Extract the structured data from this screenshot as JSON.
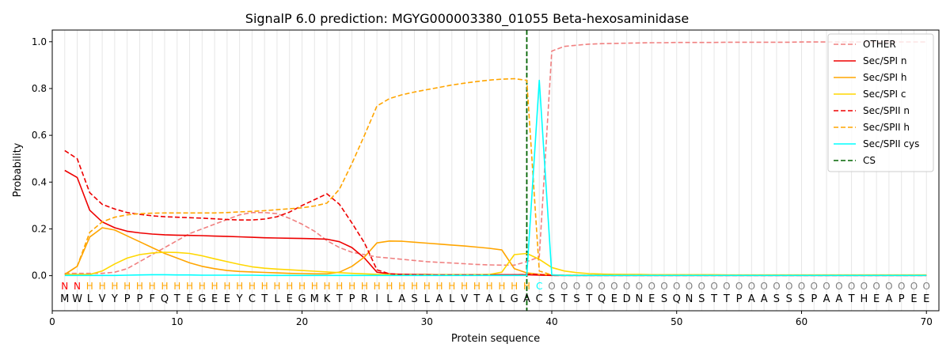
{
  "chart_data": {
    "type": "line",
    "title": "SignalP 6.0 prediction: MGYG000003380_01055 Beta-hexosaminidase",
    "xlabel": "Protein sequence",
    "ylabel": "Probability",
    "xlim": [
      0,
      71
    ],
    "ylim": [
      -0.15,
      1.05
    ],
    "xticks": [
      0,
      10,
      20,
      30,
      40,
      50,
      60,
      70
    ],
    "yticks": [
      0.0,
      0.2,
      0.4,
      0.6,
      0.8,
      1.0
    ],
    "grid": "vertical lines at each residue",
    "legend_position": "top-right",
    "cleavage_site": 38,
    "sequence": [
      "M",
      "W",
      "L",
      "V",
      "Y",
      "P",
      "P",
      "F",
      "Q",
      "T",
      "E",
      "G",
      "E",
      "E",
      "Y",
      "C",
      "T",
      "L",
      "E",
      "G",
      "M",
      "K",
      "T",
      "P",
      "R",
      "I",
      "L",
      "A",
      "S",
      "L",
      "A",
      "L",
      "V",
      "T",
      "A",
      "L",
      "G",
      "A",
      "C",
      "S",
      "T",
      "S",
      "T",
      "Q",
      "E",
      "D",
      "N",
      "E",
      "S",
      "Q",
      "N",
      "S",
      "T",
      "T",
      "P",
      "A",
      "A",
      "S",
      "S",
      "S",
      "P",
      "A",
      "A",
      "T",
      "H",
      "E",
      "A",
      "P",
      "E",
      "E"
    ],
    "region_labels": [
      "N",
      "N",
      "H",
      "H",
      "H",
      "H",
      "H",
      "H",
      "H",
      "H",
      "H",
      "H",
      "H",
      "H",
      "H",
      "H",
      "H",
      "H",
      "H",
      "H",
      "H",
      "H",
      "H",
      "H",
      "H",
      "H",
      "H",
      "H",
      "H",
      "H",
      "H",
      "H",
      "H",
      "H",
      "H",
      "H",
      "H",
      "H",
      "C",
      "O",
      "O",
      "O",
      "O",
      "O",
      "O",
      "O",
      "O",
      "O",
      "O",
      "O",
      "O",
      "O",
      "O",
      "O",
      "O",
      "O",
      "O",
      "O",
      "O",
      "O",
      "O",
      "O",
      "O",
      "O",
      "O",
      "O",
      "O",
      "O",
      "O",
      "O"
    ],
    "label_colors": {
      "N": "#ff0000",
      "H": "#ffa500",
      "C": "#00ffff",
      "O": "#808080"
    },
    "series": [
      {
        "name": "OTHER",
        "color": "#f08080",
        "dash": "dashed",
        "values": [
          0.01,
          0.01,
          0.01,
          0.01,
          0.015,
          0.03,
          0.06,
          0.09,
          0.12,
          0.15,
          0.18,
          0.2,
          0.22,
          0.24,
          0.26,
          0.27,
          0.27,
          0.265,
          0.245,
          0.22,
          0.19,
          0.15,
          0.12,
          0.1,
          0.09,
          0.08,
          0.075,
          0.07,
          0.065,
          0.06,
          0.057,
          0.054,
          0.051,
          0.048,
          0.046,
          0.045,
          0.045,
          0.06,
          0.08,
          0.96,
          0.98,
          0.985,
          0.99,
          0.992,
          0.993,
          0.994,
          0.995,
          0.996,
          0.996,
          0.997,
          0.997,
          0.997,
          0.997,
          0.998,
          0.998,
          0.998,
          0.998,
          0.998,
          0.998,
          0.999,
          0.999,
          0.999,
          0.999,
          0.999,
          0.999,
          0.999,
          0.999,
          0.999,
          0.999,
          0.999
        ]
      },
      {
        "name": "Sec/SPI n",
        "color": "#ee0000",
        "dash": "solid",
        "values": [
          0.45,
          0.42,
          0.28,
          0.23,
          0.205,
          0.19,
          0.183,
          0.178,
          0.175,
          0.173,
          0.172,
          0.171,
          0.169,
          0.168,
          0.166,
          0.164,
          0.162,
          0.161,
          0.16,
          0.159,
          0.158,
          0.156,
          0.145,
          0.12,
          0.075,
          0.015,
          0.008,
          0.006,
          0.005,
          0.005,
          0.004,
          0.004,
          0.004,
          0.004,
          0.004,
          0.004,
          0.004,
          0.004,
          0.002,
          0.001,
          0.001,
          0.001,
          0.001,
          0.001,
          0.001,
          0.001,
          0.001,
          0.001,
          0.001,
          0.001,
          0.001,
          0.001,
          0.001,
          0.001,
          0.001,
          0.001,
          0.001,
          0.001,
          0.001,
          0.001,
          0.001,
          0.001,
          0.001,
          0.001,
          0.001,
          0.001,
          0.001,
          0.001,
          0.001,
          0.001
        ]
      },
      {
        "name": "Sec/SPI h",
        "color": "#ffa500",
        "dash": "solid",
        "values": [
          0.005,
          0.04,
          0.165,
          0.205,
          0.195,
          0.17,
          0.145,
          0.12,
          0.095,
          0.075,
          0.055,
          0.04,
          0.03,
          0.022,
          0.018,
          0.016,
          0.014,
          0.012,
          0.01,
          0.009,
          0.008,
          0.008,
          0.015,
          0.04,
          0.08,
          0.14,
          0.148,
          0.147,
          0.143,
          0.139,
          0.135,
          0.131,
          0.127,
          0.122,
          0.117,
          0.11,
          0.03,
          0.012,
          0.005,
          0.003,
          0.002,
          0.002,
          0.002,
          0.002,
          0.002,
          0.002,
          0.002,
          0.002,
          0.002,
          0.002,
          0.002,
          0.002,
          0.002,
          0.002,
          0.002,
          0.002,
          0.002,
          0.002,
          0.002,
          0.002,
          0.002,
          0.002,
          0.002,
          0.002,
          0.002,
          0.002,
          0.002,
          0.002,
          0.002,
          0.002
        ]
      },
      {
        "name": "Sec/SPI c",
        "color": "#ffd700",
        "dash": "solid",
        "values": [
          0.005,
          0.005,
          0.005,
          0.02,
          0.05,
          0.075,
          0.09,
          0.097,
          0.1,
          0.099,
          0.095,
          0.085,
          0.072,
          0.06,
          0.048,
          0.038,
          0.032,
          0.028,
          0.025,
          0.022,
          0.019,
          0.016,
          0.013,
          0.01,
          0.008,
          0.006,
          0.005,
          0.004,
          0.004,
          0.004,
          0.004,
          0.004,
          0.004,
          0.004,
          0.005,
          0.015,
          0.09,
          0.095,
          0.07,
          0.035,
          0.02,
          0.013,
          0.009,
          0.007,
          0.006,
          0.005,
          0.005,
          0.004,
          0.004,
          0.004,
          0.004,
          0.004,
          0.004,
          0.003,
          0.003,
          0.003,
          0.003,
          0.003,
          0.003,
          0.003,
          0.003,
          0.003,
          0.003,
          0.003,
          0.003,
          0.003,
          0.003,
          0.003,
          0.003,
          0.003
        ]
      },
      {
        "name": "Sec/SPII n",
        "color": "#ee0000",
        "dash": "dashed",
        "values": [
          0.535,
          0.5,
          0.355,
          0.305,
          0.285,
          0.27,
          0.262,
          0.256,
          0.252,
          0.25,
          0.248,
          0.246,
          0.243,
          0.24,
          0.238,
          0.238,
          0.242,
          0.252,
          0.272,
          0.3,
          0.325,
          0.35,
          0.305,
          0.225,
          0.14,
          0.025,
          0.008,
          0.005,
          0.004,
          0.003,
          0.003,
          0.003,
          0.003,
          0.003,
          0.003,
          0.003,
          0.003,
          0.005,
          0.005,
          0.001,
          0.001,
          0.001,
          0.001,
          0.001,
          0.001,
          0.001,
          0.001,
          0.001,
          0.001,
          0.001,
          0.001,
          0.001,
          0.001,
          0.001,
          0.001,
          0.001,
          0.001,
          0.001,
          0.001,
          0.001,
          0.001,
          0.001,
          0.001,
          0.001,
          0.001,
          0.001,
          0.001,
          0.001,
          0.001,
          0.001
        ]
      },
      {
        "name": "Sec/SPII h",
        "color": "#ffa500",
        "dash": "dashed",
        "values": [
          0.005,
          0.04,
          0.185,
          0.23,
          0.25,
          0.26,
          0.265,
          0.267,
          0.268,
          0.268,
          0.268,
          0.268,
          0.268,
          0.27,
          0.273,
          0.275,
          0.278,
          0.282,
          0.286,
          0.29,
          0.298,
          0.31,
          0.37,
          0.48,
          0.6,
          0.725,
          0.757,
          0.773,
          0.785,
          0.795,
          0.805,
          0.815,
          0.823,
          0.83,
          0.836,
          0.84,
          0.842,
          0.835,
          0.02,
          0.003,
          0.002,
          0.002,
          0.002,
          0.002,
          0.002,
          0.002,
          0.002,
          0.002,
          0.002,
          0.002,
          0.002,
          0.002,
          0.002,
          0.002,
          0.002,
          0.002,
          0.002,
          0.002,
          0.002,
          0.002,
          0.002,
          0.002,
          0.002,
          0.002,
          0.002,
          0.002,
          0.002,
          0.002,
          0.002,
          0.002
        ]
      },
      {
        "name": "Sec/SPII cys",
        "color": "#00ffff",
        "dash": "solid",
        "values": [
          0.001,
          0.001,
          0.001,
          0.001,
          0.001,
          0.002,
          0.003,
          0.004,
          0.004,
          0.003,
          0.003,
          0.002,
          0.002,
          0.002,
          0.002,
          0.002,
          0.001,
          0.001,
          0.001,
          0.001,
          0.001,
          0.001,
          0.001,
          0.001,
          0.001,
          0.001,
          0.001,
          0.001,
          0.001,
          0.001,
          0.001,
          0.001,
          0.001,
          0.001,
          0.001,
          0.001,
          0.001,
          0.001,
          0.835,
          0.003,
          0.001,
          0.001,
          0.001,
          0.001,
          0.001,
          0.001,
          0.001,
          0.001,
          0.001,
          0.001,
          0.001,
          0.001,
          0.001,
          0.001,
          0.001,
          0.001,
          0.001,
          0.001,
          0.001,
          0.001,
          0.001,
          0.001,
          0.001,
          0.001,
          0.001,
          0.001,
          0.001,
          0.001,
          0.001,
          0.001
        ]
      },
      {
        "name": "CS",
        "color": "#006400",
        "dash": "dashed",
        "values": []
      }
    ]
  }
}
